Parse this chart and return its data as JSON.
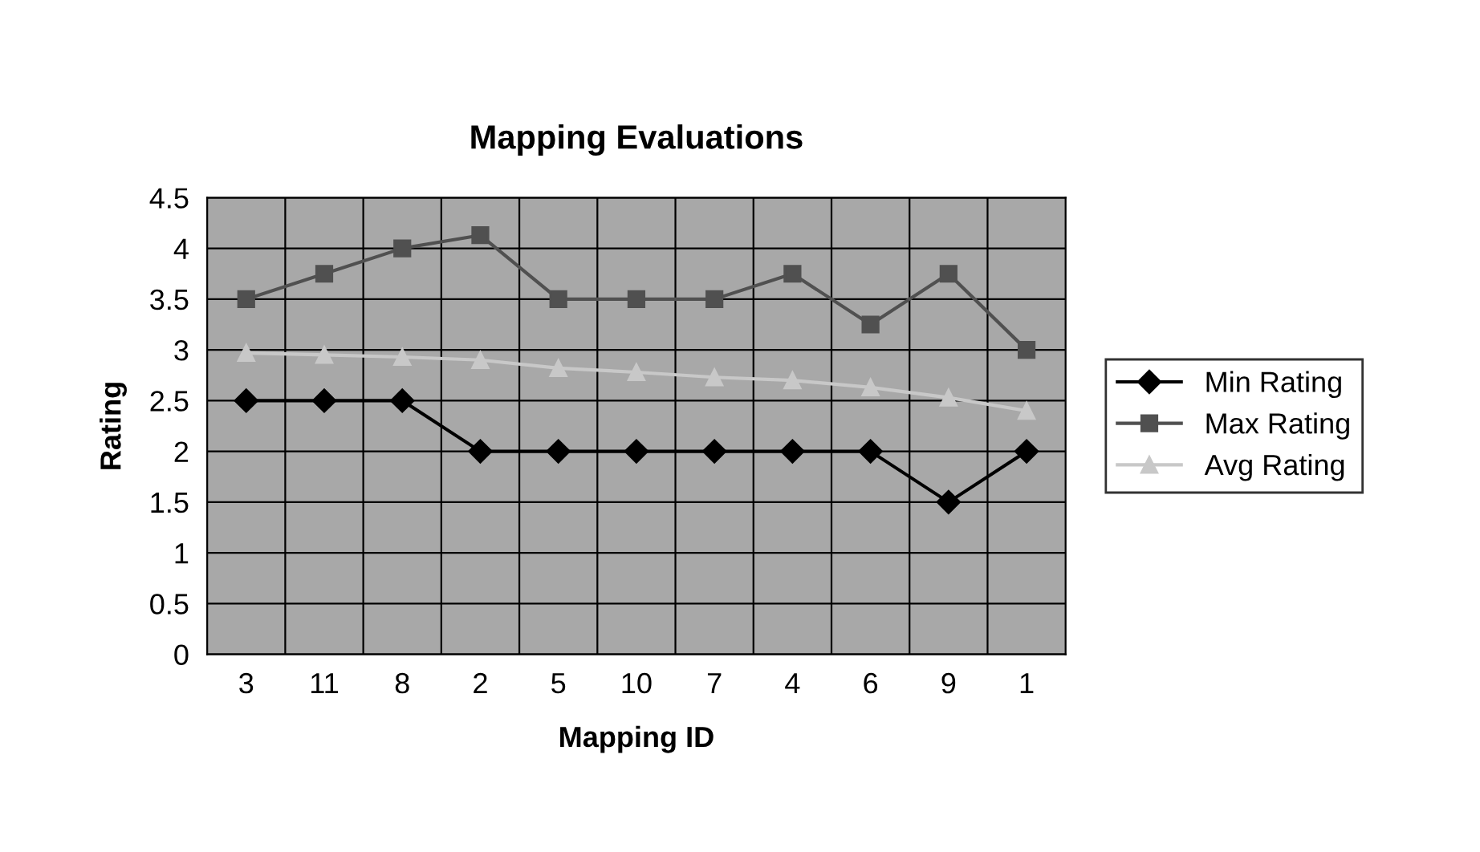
{
  "chart_data": {
    "type": "line",
    "title": "Mapping Evaluations",
    "xlabel": "Mapping ID",
    "ylabel": "Rating",
    "categories": [
      "3",
      "11",
      "8",
      "2",
      "5",
      "10",
      "7",
      "4",
      "6",
      "9",
      "1"
    ],
    "series": [
      {
        "name": "Min Rating",
        "color": "#000000",
        "marker": "diamond",
        "values": [
          2.5,
          2.5,
          2.5,
          2,
          2,
          2,
          2,
          2,
          2,
          1.5,
          2
        ]
      },
      {
        "name": "Max Rating",
        "color": "#505050",
        "marker": "square",
        "values": [
          3.5,
          3.75,
          4,
          4.13,
          3.5,
          3.5,
          3.5,
          3.75,
          3.25,
          3.75,
          3
        ]
      },
      {
        "name": "Avg Rating",
        "color": "#c8c8c8",
        "marker": "triangle",
        "values": [
          2.97,
          2.95,
          2.93,
          2.9,
          2.82,
          2.78,
          2.73,
          2.7,
          2.63,
          2.53,
          2.4
        ]
      }
    ],
    "ylim": [
      0,
      4.5
    ],
    "yticks": [
      0,
      0.5,
      1,
      1.5,
      2,
      2.5,
      3,
      3.5,
      4,
      4.5
    ],
    "grid": true,
    "legend": "right"
  }
}
